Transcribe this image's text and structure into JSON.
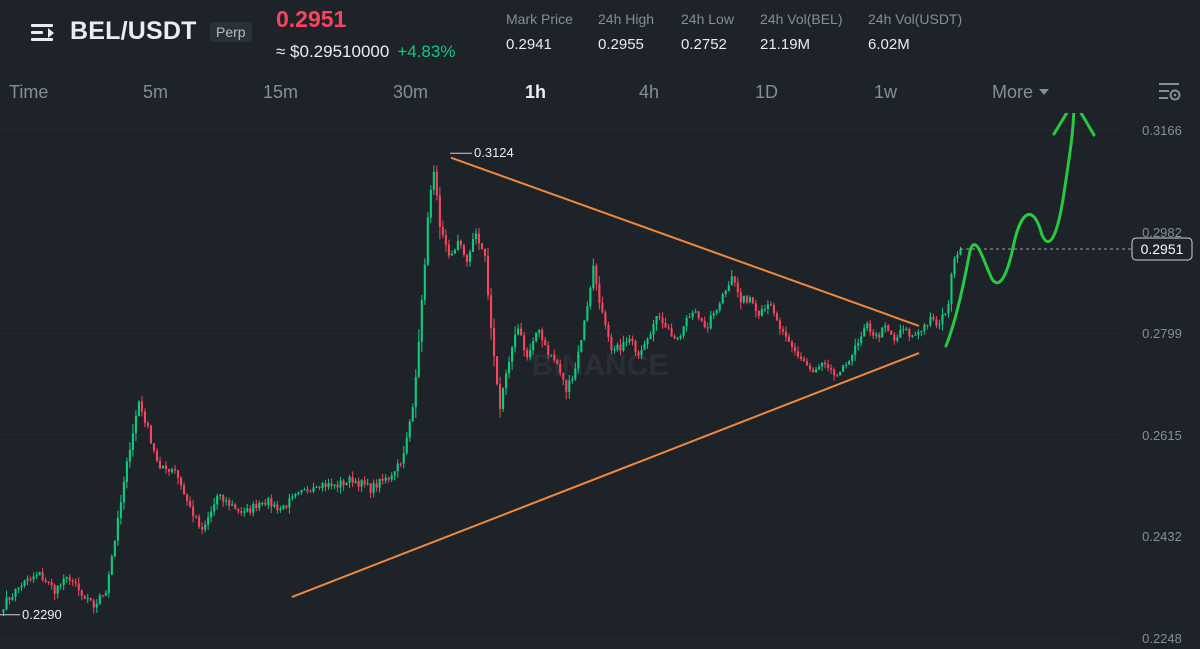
{
  "header": {
    "symbol": "BEL/USDT",
    "badge": "Perp",
    "last_price": "0.2951",
    "approx_price": "≈ $0.29510000",
    "change_pct": "+4.83%",
    "stats": [
      {
        "label": "Mark Price",
        "value": "0.2941"
      },
      {
        "label": "24h High",
        "value": "0.2955"
      },
      {
        "label": "24h Low",
        "value": "0.2752"
      },
      {
        "label": "24h Vol(BEL)",
        "value": "21.19M"
      },
      {
        "label": "24h Vol(USDT)",
        "value": "6.02M"
      }
    ]
  },
  "timeframes": [
    "Time",
    "5m",
    "15m",
    "30m",
    "1h",
    "4h",
    "1D",
    "1w"
  ],
  "active_timeframe": "1h",
  "more_label": "More",
  "colors": {
    "up": "#0ecb81",
    "down": "#f6465d",
    "trendline": "#f0883e",
    "arrow": "#28c840",
    "background": "#1e2229"
  },
  "chart_data": {
    "type": "candlestick",
    "ylim": [
      0.2248,
      0.3166
    ],
    "y_ticks": [
      "0.3166",
      "0.2982",
      "0.2799",
      "0.2615",
      "0.2432",
      "0.2248"
    ],
    "current_price_label": "0.2951",
    "current_price": 0.2951,
    "high_label": "0.3124",
    "high": 0.3124,
    "low_label": "0.2290",
    "low": 0.229,
    "watermark": "BINANCE",
    "path": [
      [
        0,
        0.2308
      ],
      [
        6,
        0.2345
      ],
      [
        12,
        0.2362
      ],
      [
        17,
        0.2335
      ],
      [
        22,
        0.2358
      ],
      [
        26,
        0.2322
      ],
      [
        30,
        0.2305
      ],
      [
        34,
        0.2335
      ],
      [
        38,
        0.2458
      ],
      [
        42,
        0.2595
      ],
      [
        45,
        0.2675
      ],
      [
        48,
        0.2625
      ],
      [
        52,
        0.2552
      ],
      [
        57,
        0.2555
      ],
      [
        61,
        0.2495
      ],
      [
        66,
        0.2438
      ],
      [
        71,
        0.2502
      ],
      [
        76,
        0.2488
      ],
      [
        80,
        0.2472
      ],
      [
        86,
        0.2498
      ],
      [
        92,
        0.2482
      ],
      [
        98,
        0.2505
      ],
      [
        104,
        0.2528
      ],
      [
        110,
        0.2522
      ],
      [
        116,
        0.2535
      ],
      [
        122,
        0.2518
      ],
      [
        128,
        0.2538
      ],
      [
        133,
        0.2578
      ],
      [
        136,
        0.2665
      ],
      [
        139,
        0.2852
      ],
      [
        141,
        0.3005
      ],
      [
        143,
        0.3098
      ],
      [
        145,
        0.2985
      ],
      [
        148,
        0.2935
      ],
      [
        151,
        0.2962
      ],
      [
        154,
        0.2932
      ],
      [
        157,
        0.2978
      ],
      [
        160,
        0.2935
      ],
      [
        162,
        0.2805
      ],
      [
        165,
        0.2665
      ],
      [
        168,
        0.2745
      ],
      [
        171,
        0.2812
      ],
      [
        174,
        0.2755
      ],
      [
        178,
        0.2805
      ],
      [
        181,
        0.2765
      ],
      [
        184,
        0.2742
      ],
      [
        187,
        0.2695
      ],
      [
        190,
        0.2738
      ],
      [
        193,
        0.2818
      ],
      [
        196,
        0.2918
      ],
      [
        199,
        0.2832
      ],
      [
        202,
        0.2762
      ],
      [
        205,
        0.2775
      ],
      [
        208,
        0.2785
      ],
      [
        211,
        0.2765
      ],
      [
        214,
        0.2795
      ],
      [
        218,
        0.2832
      ],
      [
        221,
        0.2805
      ],
      [
        224,
        0.2782
      ],
      [
        227,
        0.2822
      ],
      [
        230,
        0.2845
      ],
      [
        233,
        0.2802
      ],
      [
        236,
        0.2835
      ],
      [
        239,
        0.2868
      ],
      [
        242,
        0.2905
      ],
      [
        245,
        0.2855
      ],
      [
        248,
        0.2865
      ],
      [
        251,
        0.2838
      ],
      [
        254,
        0.2855
      ],
      [
        257,
        0.2818
      ],
      [
        260,
        0.2785
      ],
      [
        263,
        0.2765
      ],
      [
        266,
        0.2748
      ],
      [
        269,
        0.2725
      ],
      [
        272,
        0.2742
      ],
      [
        275,
        0.2725
      ],
      [
        278,
        0.2722
      ],
      [
        281,
        0.2755
      ],
      [
        284,
        0.2778
      ],
      [
        287,
        0.2812
      ],
      [
        290,
        0.2792
      ],
      [
        293,
        0.2808
      ],
      [
        296,
        0.2785
      ],
      [
        299,
        0.2805
      ],
      [
        302,
        0.2792
      ],
      [
        305,
        0.2808
      ],
      [
        308,
        0.2822
      ],
      [
        311,
        0.2812
      ],
      [
        314,
        0.2855
      ],
      [
        316,
        0.2942
      ],
      [
        318,
        0.2951
      ]
    ],
    "annotations": [
      {
        "type": "trendline",
        "from": [
          0.2432,
          0.2322
        ],
        "to": [
          0.7658,
          0.2763
        ]
      },
      {
        "type": "trendline",
        "from": [
          0.3758,
          0.3116
        ],
        "to": [
          0.7658,
          0.2812
        ]
      },
      {
        "type": "freehand-arrow",
        "direction": "up"
      }
    ]
  }
}
